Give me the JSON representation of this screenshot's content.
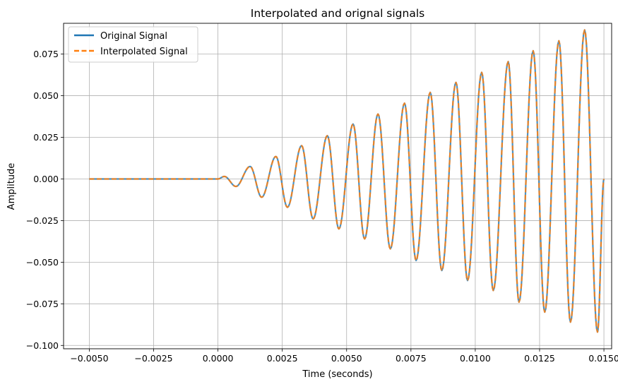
{
  "chart_data": {
    "type": "line",
    "title": "Interpolated and orignal signals",
    "xlabel": "Time (seconds)",
    "ylabel": "Amplitude",
    "xlim": [
      -0.006,
      0.0153
    ],
    "ylim": [
      -0.102,
      0.0935
    ],
    "grid": true,
    "legend_position": "upper-left",
    "x_ticks": [
      -0.005,
      -0.0025,
      0.0,
      0.0025,
      0.005,
      0.0075,
      0.01,
      0.0125,
      0.015
    ],
    "x_tick_labels": [
      "−0.0050",
      "−0.0025",
      "0.0000",
      "0.0025",
      "0.0050",
      "0.0075",
      "0.0100",
      "0.0125",
      "0.0150"
    ],
    "y_ticks": [
      -0.1,
      -0.075,
      -0.05,
      -0.025,
      0.0,
      0.025,
      0.05,
      0.075
    ],
    "y_tick_labels": [
      "−0.100",
      "−0.075",
      "−0.050",
      "−0.025",
      "0.000",
      "0.025",
      "0.050",
      "0.075"
    ],
    "series": [
      {
        "name": "Original Signal",
        "color": "#1f77b4",
        "style": "solid",
        "x": [
          -0.005,
          0.0,
          0.00025,
          0.0007,
          0.00125,
          0.0017,
          0.00225,
          0.0027,
          0.00325,
          0.0037,
          0.00425,
          0.0047,
          0.00525,
          0.0057,
          0.00622,
          0.0067,
          0.00725,
          0.0077,
          0.00825,
          0.0087,
          0.00925,
          0.0097,
          0.01025,
          0.0107,
          0.01128,
          0.0117,
          0.01225,
          0.0127,
          0.01325,
          0.0137,
          0.01425,
          0.01475,
          0.015
        ],
        "y": [
          0.0,
          0.0,
          0.0015,
          -0.0045,
          0.0075,
          -0.011,
          0.0135,
          -0.017,
          0.02,
          -0.024,
          0.026,
          -0.03,
          0.033,
          -0.036,
          0.039,
          -0.042,
          0.0455,
          -0.049,
          0.052,
          -0.055,
          0.058,
          -0.061,
          0.064,
          -0.067,
          0.0705,
          -0.074,
          0.077,
          -0.08,
          0.083,
          -0.086,
          0.0895,
          -0.092,
          0.0
        ]
      },
      {
        "name": "Interpolated Signal",
        "color": "#ff7f0e",
        "style": "dashed",
        "x": [
          -0.005,
          0.0,
          0.00025,
          0.0007,
          0.00125,
          0.0017,
          0.00225,
          0.0027,
          0.00325,
          0.0037,
          0.00425,
          0.0047,
          0.00525,
          0.0057,
          0.00622,
          0.0067,
          0.00725,
          0.0077,
          0.00825,
          0.0087,
          0.00925,
          0.0097,
          0.01025,
          0.0107,
          0.01128,
          0.0117,
          0.01225,
          0.0127,
          0.01325,
          0.0137,
          0.01425,
          0.01475,
          0.015
        ],
        "y": [
          0.0,
          0.0,
          0.0015,
          -0.0045,
          0.0075,
          -0.011,
          0.0135,
          -0.017,
          0.02,
          -0.024,
          0.026,
          -0.03,
          0.033,
          -0.036,
          0.039,
          -0.042,
          0.0455,
          -0.049,
          0.052,
          -0.055,
          0.058,
          -0.061,
          0.064,
          -0.067,
          0.0705,
          -0.074,
          0.077,
          -0.08,
          0.083,
          -0.086,
          0.0895,
          -0.092,
          0.0
        ]
      }
    ]
  }
}
